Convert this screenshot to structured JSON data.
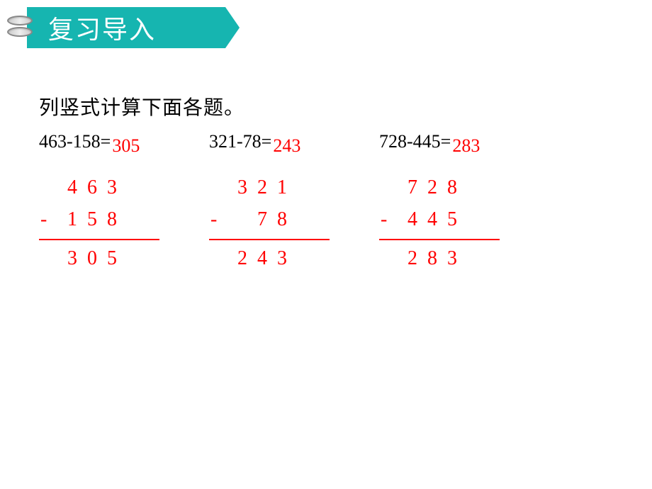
{
  "header": {
    "title": "复习导入",
    "tab_color": "#16b5b0",
    "title_color": "#ffffff"
  },
  "instruction": "列竖式计算下面各题。",
  "text_color_primary": "#000000",
  "text_color_answer": "#ff0000",
  "problems": [
    {
      "expression": "463-158=",
      "answer": "305",
      "minuend_digits": [
        "4",
        "6",
        "3"
      ],
      "subtrahend_digits": [
        "1",
        "5",
        "8"
      ],
      "result_digits": [
        "3",
        "0",
        "5"
      ]
    },
    {
      "expression": "321-78=",
      "answer": "243",
      "minuend_digits": [
        "3",
        "2",
        "1"
      ],
      "subtrahend_digits": [
        "",
        "7",
        "8"
      ],
      "result_digits": [
        "2",
        "4",
        "3"
      ]
    },
    {
      "expression": "728-445=",
      "answer": "283",
      "minuend_digits": [
        "7",
        "2",
        "8"
      ],
      "subtrahend_digits": [
        "4",
        "4",
        "5"
      ],
      "result_digits": [
        "2",
        "8",
        "3"
      ]
    }
  ]
}
